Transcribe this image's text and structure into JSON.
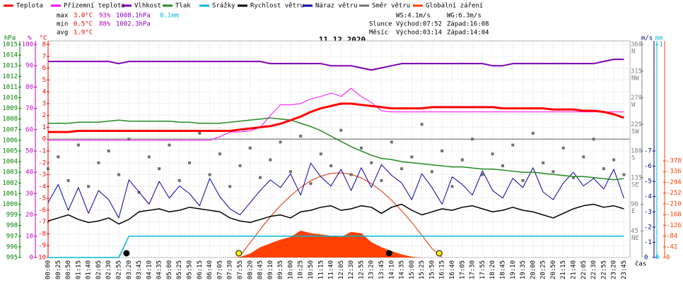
{
  "chart_data": {
    "type": "line",
    "title": "11.12.2020",
    "x_label": "čas",
    "categories": [
      "00:00",
      "00:25",
      "00:50",
      "01:15",
      "01:40",
      "02:05",
      "02:30",
      "02:55",
      "03:20",
      "03:45",
      "04:10",
      "04:35",
      "05:00",
      "05:25",
      "05:50",
      "06:15",
      "06:40",
      "07:05",
      "07:30",
      "07:55",
      "08:20",
      "08:45",
      "09:10",
      "09:35",
      "10:00",
      "10:25",
      "10:50",
      "11:15",
      "11:40",
      "12:05",
      "12:30",
      "12:55",
      "13:20",
      "13:45",
      "14:10",
      "14:35",
      "15:00",
      "15:25",
      "15:50",
      "16:15",
      "16:40",
      "17:05",
      "17:30",
      "17:55",
      "18:20",
      "18:45",
      "19:10",
      "19:35",
      "20:00",
      "20:25",
      "20:50",
      "21:15",
      "21:40",
      "22:05",
      "22:30",
      "22:55",
      "23:20",
      "23:45"
    ],
    "grid": true,
    "axes": {
      "pressure": {
        "label": "hPa",
        "color": "#008000",
        "ylim": [
          995,
          1015
        ],
        "yticks": [
          995,
          996,
          997,
          998,
          999,
          1000,
          1001,
          1002,
          1003,
          1004,
          1005,
          1006,
          1007,
          1008,
          1009,
          1010,
          1011,
          1012,
          1013,
          1014,
          1015
        ]
      },
      "humidity": {
        "label": "%",
        "color": "#c000c0",
        "ylim": [
          0,
          100
        ],
        "yticks": [
          0,
          10,
          20,
          30,
          40,
          50,
          60,
          70,
          80,
          90,
          100
        ]
      },
      "temperature": {
        "label": "°C",
        "color": "#ff0000",
        "ylim": [
          -10,
          8
        ],
        "yticks": [
          -10,
          -9,
          -8,
          -7,
          -6,
          -5,
          -4,
          -3,
          -2,
          -1,
          0,
          1,
          2,
          3,
          4,
          5,
          6,
          7,
          8
        ]
      },
      "direction": {
        "color": "#808080",
        "ylim": [
          0,
          360
        ],
        "yticks": [
          45,
          90,
          135,
          180,
          225,
          270,
          315,
          360
        ],
        "compass": [
          "NE",
          "E",
          "SE",
          "S",
          "SW",
          "W",
          "NW",
          "N"
        ]
      },
      "wind": {
        "label": "m/s",
        "color": "#000080",
        "ylim": [
          0,
          14
        ],
        "yticks": [
          0,
          {
            "value": 1,
            "label": "-1"
          },
          {
            "value": 2,
            "label": "-2"
          },
          {
            "value": 3,
            "label": "-3"
          },
          {
            "value": 4,
            "label": "-4"
          },
          {
            "value": 5,
            "label": "-5"
          },
          {
            "value": 6,
            "label": "-6"
          },
          {
            "value": 7,
            "label": "-7"
          }
        ]
      },
      "rain": {
        "label": "mm",
        "color": "#00b8d8",
        "ylim": [
          0,
          1
        ],
        "yticks": [
          0,
          {
            "value": 1,
            "label": "-1"
          }
        ]
      },
      "radiation": {
        "color": "#ff4000",
        "ylim": [
          0,
          833
        ],
        "yticks": [
          0,
          {
            "value": 42,
            "label": "-42"
          },
          {
            "value": 84,
            "label": "-84"
          },
          {
            "value": 126,
            "label": "-126"
          },
          {
            "value": 168,
            "label": "-168"
          },
          {
            "value": 210,
            "label": "-210"
          },
          {
            "value": 252,
            "label": "-252"
          },
          {
            "value": 294,
            "label": "-294"
          },
          {
            "value": 336,
            "label": "-336"
          },
          {
            "value": 378,
            "label": "-378"
          }
        ]
      }
    },
    "series": [
      {
        "name": "Globální záření",
        "kind": "area",
        "axis": "radiation",
        "color": "#ff4000",
        "values": [
          0,
          0,
          0,
          0,
          0,
          0,
          0,
          0,
          0,
          0,
          0,
          0,
          0,
          0,
          0,
          0,
          0,
          0,
          0,
          2,
          15,
          40,
          55,
          70,
          80,
          105,
          95,
          90,
          85,
          80,
          100,
          95,
          60,
          40,
          25,
          12,
          3,
          0,
          0,
          0,
          0,
          0,
          0,
          0,
          0,
          0,
          0,
          0,
          0,
          0,
          0,
          0,
          0,
          0,
          0,
          0,
          0,
          0
        ]
      },
      {
        "name": "Srážky",
        "kind": "line",
        "axis": "rain",
        "color": "#00b8d8",
        "width": 1.5,
        "values": [
          0,
          0,
          0,
          0,
          0,
          0,
          0,
          0,
          0.1,
          0.1,
          0.1,
          0.1,
          0.1,
          0.1,
          0.1,
          0.1,
          0.1,
          0.1,
          0.1,
          0.1,
          0.1,
          0.1,
          0.1,
          0.1,
          0.1,
          0.1,
          0.1,
          0.1,
          0.1,
          0.1,
          0.1,
          0.1,
          0.1,
          0.1,
          0.1,
          0.1,
          0.1,
          0.1,
          0.1,
          0.1,
          0.1,
          0.1,
          0.1,
          0.1,
          0.1,
          0.1,
          0.1,
          0.1,
          0.1,
          0.1,
          0.1,
          0.1,
          0.1,
          0.1,
          0.1,
          0.1,
          0.1,
          0.1
        ]
      },
      {
        "name": "Směr větru",
        "kind": "scatter",
        "axis": "direction",
        "color": "#707070",
        "values": [
          150,
          170,
          130,
          190,
          120,
          160,
          180,
          140,
          200,
          110,
          170,
          150,
          190,
          130,
          160,
          210,
          140,
          175,
          120,
          155,
          185,
          135,
          165,
          195,
          145,
          205,
          125,
          175,
          155,
          215,
          140,
          185,
          160,
          130,
          195,
          150,
          170,
          225,
          145,
          180,
          120,
          165,
          200,
          140,
          175,
          155,
          190,
          130,
          210,
          160,
          145,
          185,
          135,
          170,
          200,
          150,
          165,
          140
        ]
      },
      {
        "name": "Náraz větru",
        "kind": "line",
        "axis": "wind",
        "color": "#0000a0",
        "width": 1,
        "values": [
          3.6,
          4.8,
          3.1,
          4.6,
          2.9,
          4.4,
          3.8,
          2.6,
          5.1,
          4.3,
          3.5,
          5.0,
          3.9,
          4.7,
          4.2,
          3.4,
          5.2,
          4.0,
          3.2,
          2.8,
          3.6,
          4.4,
          5.1,
          4.6,
          5.5,
          4.1,
          6.2,
          5.3,
          4.7,
          5.8,
          4.4,
          5.9,
          4.6,
          6.1,
          5.4,
          4.9,
          3.8,
          5.5,
          4.6,
          3.5,
          5.3,
          4.8,
          4.1,
          5.7,
          4.4,
          3.9,
          5.2,
          4.6,
          5.9,
          4.3,
          3.8,
          4.9,
          5.6,
          4.7,
          5.2,
          4.5,
          5.8,
          3.9
        ]
      },
      {
        "name": "Rychlost větru",
        "kind": "line",
        "axis": "wind",
        "color": "#000000",
        "width": 1.5,
        "values": [
          2.4,
          2.6,
          2.8,
          2.5,
          2.3,
          2.4,
          2.6,
          2.2,
          2.5,
          3.0,
          3.1,
          3.2,
          3.0,
          3.1,
          3.3,
          3.2,
          3.1,
          3.0,
          2.6,
          2.4,
          2.3,
          2.5,
          2.7,
          2.8,
          2.6,
          3.0,
          3.1,
          3.3,
          3.4,
          3.1,
          3.2,
          3.4,
          3.3,
          2.9,
          3.3,
          3.5,
          3.1,
          2.8,
          3.0,
          3.2,
          3.1,
          3.3,
          3.4,
          3.2,
          3.0,
          3.1,
          3.3,
          3.1,
          3.0,
          2.8,
          2.6,
          2.9,
          3.2,
          3.4,
          3.5,
          3.3,
          3.4,
          3.2
        ]
      },
      {
        "name": "Tlak",
        "kind": "line",
        "axis": "pressure",
        "color": "#228b22",
        "width": 1.5,
        "values": [
          1007.6,
          1007.6,
          1007.6,
          1007.7,
          1007.7,
          1007.7,
          1007.8,
          1007.9,
          1007.8,
          1007.8,
          1007.8,
          1007.8,
          1007.8,
          1007.7,
          1007.7,
          1007.6,
          1007.6,
          1007.6,
          1007.7,
          1007.8,
          1007.9,
          1008.0,
          1008.1,
          1008.0,
          1007.9,
          1007.6,
          1007.3,
          1006.9,
          1006.4,
          1005.9,
          1005.4,
          1005.0,
          1004.6,
          1004.3,
          1004.2,
          1004.0,
          1003.9,
          1003.8,
          1003.7,
          1003.6,
          1003.5,
          1003.5,
          1003.4,
          1003.3,
          1003.3,
          1003.2,
          1003.1,
          1003.0,
          1003.0,
          1002.9,
          1002.8,
          1002.7,
          1002.6,
          1002.6,
          1002.5,
          1002.4,
          1002.3,
          1002.4
        ]
      },
      {
        "name": "Vlhkost",
        "kind": "line",
        "axis": "humidity",
        "color": "#8000b0",
        "width": 2,
        "values": [
          92,
          92,
          92,
          92,
          92,
          92,
          92,
          91,
          92,
          92,
          92,
          92,
          92,
          92,
          92,
          92,
          92,
          92,
          92,
          92,
          92,
          92,
          91,
          91,
          91,
          91,
          91,
          91,
          90,
          90,
          90,
          89,
          88,
          89,
          90,
          91,
          91,
          91,
          91,
          91,
          91,
          91,
          91,
          91,
          90,
          90,
          91,
          91,
          91,
          91,
          91,
          91,
          91,
          91,
          91,
          92,
          93,
          93
        ]
      },
      {
        "name": "Přízemní teplota",
        "kind": "line",
        "axis": "temperature",
        "color": "#ff00ff",
        "width": 1,
        "values": [
          -0.1,
          -0.1,
          -0.1,
          -0.1,
          -0.1,
          -0.1,
          -0.1,
          -0.1,
          -0.1,
          -0.1,
          -0.1,
          -0.1,
          -0.1,
          -0.1,
          -0.1,
          -0.1,
          -0.1,
          0.2,
          0.6,
          0.6,
          0.7,
          1.0,
          2.0,
          2.9,
          2.9,
          3.0,
          3.4,
          3.6,
          3.9,
          3.6,
          4.3,
          3.6,
          3.1,
          2.4,
          2.3,
          2.3,
          2.3,
          2.3,
          2.3,
          2.3,
          2.3,
          2.3,
          2.3,
          2.3,
          2.3,
          2.3,
          2.3,
          2.3,
          2.3,
          2.3,
          2.3,
          2.3,
          2.3,
          2.3,
          2.3,
          2.3,
          2.3,
          2.3
        ]
      },
      {
        "name": "Teplota",
        "kind": "line",
        "axis": "temperature",
        "color": "#ff0000",
        "width": 3,
        "values": [
          0.6,
          0.6,
          0.6,
          0.7,
          0.7,
          0.7,
          0.7,
          0.7,
          0.7,
          0.7,
          0.7,
          0.7,
          0.7,
          0.7,
          0.7,
          0.7,
          0.7,
          0.7,
          0.7,
          0.8,
          0.9,
          1.0,
          1.1,
          1.3,
          1.6,
          1.9,
          2.3,
          2.6,
          2.8,
          3.0,
          3.0,
          2.9,
          2.8,
          2.7,
          2.6,
          2.6,
          2.6,
          2.6,
          2.7,
          2.7,
          2.7,
          2.7,
          2.7,
          2.7,
          2.7,
          2.6,
          2.6,
          2.6,
          2.6,
          2.6,
          2.5,
          2.5,
          2.5,
          2.4,
          2.4,
          2.3,
          2.1,
          1.8
        ]
      }
    ],
    "legend_order": [
      8,
      7,
      6,
      5,
      1,
      4,
      3,
      2,
      0
    ],
    "clear_sky_curve": {
      "axis": "radiation",
      "color": "#e03000",
      "values": [
        null,
        null,
        null,
        null,
        null,
        null,
        null,
        null,
        null,
        null,
        null,
        null,
        null,
        null,
        null,
        null,
        null,
        null,
        null,
        6,
        58,
        110,
        159,
        203,
        241,
        274,
        300,
        318,
        329,
        331,
        325,
        311,
        289,
        260,
        224,
        183,
        137,
        87,
        35,
        0,
        null,
        null,
        null,
        null,
        null,
        null,
        null,
        null,
        null,
        null,
        null,
        null,
        null,
        null,
        null,
        null,
        null,
        null
      ]
    },
    "reference_line": {
      "axis": "temperature",
      "value": 0,
      "color": "#909090"
    },
    "markers": [
      {
        "minute": 472,
        "color": "#ffee00"
      },
      {
        "minute": 968,
        "color": "#ffee00"
      },
      {
        "minute": 194,
        "color": "#000000"
      },
      {
        "minute": 844,
        "color": "#000000"
      }
    ],
    "stats": [
      [
        {
          "text": "max",
          "color": "#000000"
        },
        {
          "text": "3.0°C",
          "color": "#ff0000"
        },
        {
          "text": "93%",
          "color": "#c000c0"
        },
        {
          "text": "1008.1hPa",
          "color": "#8000b0"
        },
        {
          "text": "0.1mm",
          "color": "#00b8d8"
        }
      ],
      [
        {
          "text": "min",
          "color": "#000000"
        },
        {
          "text": "0.5°C",
          "color": "#ff0000"
        },
        {
          "text": "88%",
          "color": "#c000c0"
        },
        {
          "text": "1002.3hPa",
          "color": "#8000b0"
        }
      ],
      [
        {
          "text": "avg",
          "color": "#000000"
        },
        {
          "text": "1.9°C",
          "color": "#ff0000"
        }
      ]
    ],
    "info": [
      [
        "",
        "WS:4.1m/s",
        "WG:6.3m/s"
      ],
      [
        "Slunce",
        "Východ:07:52",
        "Západ:16:08"
      ],
      [
        "Měsíc",
        "Východ:03:14",
        "Západ:14:04"
      ]
    ]
  }
}
